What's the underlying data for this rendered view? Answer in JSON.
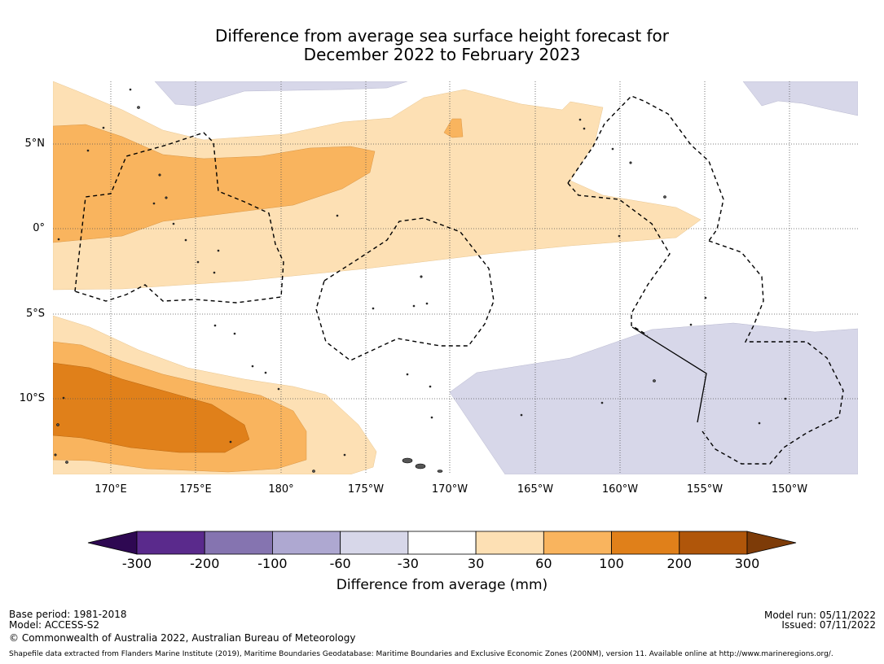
{
  "title": {
    "line1": "Difference from average sea surface height forecast for",
    "line2": "December 2022 to February 2023"
  },
  "map": {
    "lon_labels": [
      "170°E",
      "175°E",
      "180°",
      "175°W",
      "170°W",
      "165°W",
      "160°W",
      "155°W",
      "150°W"
    ],
    "lat_labels": [
      "5°N",
      "0°",
      "5°S",
      "10°S"
    ],
    "lon_range_deg_east": [
      166.6,
      213.8
    ],
    "lat_range_deg": [
      -14.4,
      8.6
    ],
    "gridline_style": "dotted grey",
    "eez_boundary_style": "dashed black"
  },
  "colorbar": {
    "tick_labels": [
      "-300",
      "-200",
      "-100",
      "-60",
      "-30",
      "30",
      "60",
      "100",
      "200",
      "300"
    ],
    "colors": [
      "#2e0852",
      "#5a2a8c",
      "#8574b0",
      "#aea8d1",
      "#d7d7e9",
      "#ffffff",
      "#fde0b4",
      "#f9b45e",
      "#e0801a",
      "#b0560a",
      "#7d3b08"
    ],
    "label": "Difference from average (mm)"
  },
  "footer": {
    "base_period": "Base period: 1981-2018",
    "model": "Model: ACCESS-S2",
    "copyright": "© Commonwealth of Australia 2022, Australian Bureau of Meteorology",
    "model_run": "Model run: 05/11/2022",
    "issued": "Issued: 07/11/2022",
    "shapefile_credit": "Shapefile data extracted from Flanders Marine Institute (2019), Maritime Boundaries Geodatabase: Maritime Boundaries and Exclusive Economic Zones (200NM), version 11. Available online at http://www.marineregions.org/."
  }
}
